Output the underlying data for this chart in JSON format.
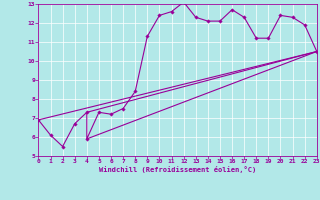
{
  "xlabel": "Windchill (Refroidissement éolien,°C)",
  "xlim": [
    0,
    23
  ],
  "ylim": [
    5,
    13
  ],
  "xticks": [
    0,
    1,
    2,
    3,
    4,
    5,
    6,
    7,
    8,
    9,
    10,
    11,
    12,
    13,
    14,
    15,
    16,
    17,
    18,
    19,
    20,
    21,
    22,
    23
  ],
  "yticks": [
    5,
    6,
    7,
    8,
    9,
    10,
    11,
    12,
    13
  ],
  "bg_color": "#b2e8e8",
  "line_color": "#990099",
  "grid_color": "#ffffff",
  "line1_x": [
    0,
    1,
    2,
    3,
    4,
    4,
    5,
    6,
    7,
    8,
    9,
    10,
    11,
    12,
    13,
    14,
    15,
    16,
    17,
    18,
    19,
    20,
    21,
    22,
    23
  ],
  "line1_y": [
    6.9,
    6.1,
    5.5,
    6.7,
    7.3,
    5.9,
    7.3,
    7.2,
    7.5,
    8.4,
    11.3,
    12.4,
    12.6,
    13.1,
    12.3,
    12.1,
    12.1,
    12.7,
    12.3,
    11.2,
    11.2,
    12.4,
    12.3,
    11.9,
    10.5
  ],
  "line2_x": [
    0,
    23
  ],
  "line2_y": [
    6.9,
    10.5
  ],
  "line3_x": [
    4,
    23
  ],
  "line3_y": [
    7.3,
    10.5
  ],
  "line4_x": [
    4,
    23
  ],
  "line4_y": [
    5.9,
    10.5
  ]
}
